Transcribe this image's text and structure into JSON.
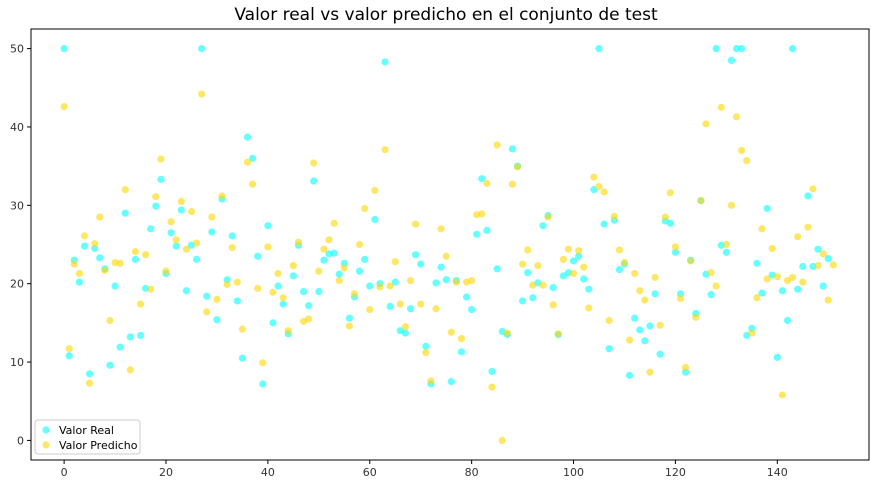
{
  "chart_data": {
    "type": "scatter",
    "title": "Valor real vs valor predicho en el conjunto de test",
    "xlabel": "",
    "ylabel": "",
    "xlim": [
      -6.5,
      158
    ],
    "ylim": [
      -2.5,
      52.5
    ],
    "xticks": [
      0,
      20,
      40,
      60,
      80,
      100,
      120,
      140
    ],
    "yticks": [
      0,
      10,
      20,
      30,
      40,
      50
    ],
    "grid": false,
    "legend_position": "bottom-left",
    "series": [
      {
        "name": "Valor Real",
        "color": "#00ffff",
        "y": [
          50.0,
          10.8,
          23.0,
          20.2,
          24.8,
          8.5,
          24.5,
          23.3,
          21.9,
          9.6,
          19.7,
          11.9,
          29.0,
          13.2,
          23.1,
          13.4,
          19.4,
          27.0,
          29.9,
          33.3,
          21.3,
          26.5,
          24.8,
          29.4,
          19.1,
          24.9,
          23.1,
          50.0,
          18.4,
          26.6,
          15.4,
          30.8,
          20.5,
          26.1,
          17.8,
          10.5,
          38.7,
          36.0,
          23.5,
          7.2,
          27.4,
          15.0,
          19.7,
          17.4,
          13.6,
          21.0,
          24.9,
          19.0,
          17.2,
          33.1,
          19.0,
          23.0,
          23.8,
          23.9,
          21.2,
          22.6,
          15.6,
          18.3,
          21.6,
          23.1,
          19.7,
          28.2,
          20.0,
          48.3,
          17.1,
          20.2,
          14.0,
          13.7,
          16.8,
          23.7,
          22.5,
          12.0,
          7.2,
          20.1,
          22.1,
          20.5,
          7.5,
          20.4,
          11.3,
          18.3,
          16.7,
          26.3,
          33.4,
          26.8,
          8.8,
          21.9,
          13.9,
          13.5,
          37.2,
          35.0,
          17.8,
          21.4,
          18.2,
          20.1,
          27.4,
          28.7,
          19.5,
          13.5,
          21.0,
          21.4,
          22.9,
          23.5,
          20.6,
          19.3,
          32.0,
          50.0,
          27.6,
          11.7,
          28.1,
          21.8,
          22.5,
          8.3,
          15.6,
          14.1,
          12.7,
          14.6,
          18.7,
          11.0,
          28.0,
          27.7,
          24.0,
          18.7,
          8.7,
          23.0,
          16.2,
          30.6,
          21.2,
          18.6,
          50.0,
          24.9,
          24.0,
          48.5,
          50.0,
          50.0,
          13.4,
          14.3,
          22.6,
          18.8,
          29.6,
          21.1,
          10.6,
          19.1,
          15.3,
          50.0,
          19.3,
          22.2,
          31.2,
          22.2,
          24.4,
          19.7,
          23.2
        ]
      },
      {
        "name": "Valor Predicho",
        "color": "#ffd700",
        "y": [
          42.6,
          11.7,
          22.5,
          21.3,
          26.1,
          7.3,
          25.1,
          28.5,
          21.7,
          15.3,
          22.7,
          22.6,
          32.0,
          9.0,
          24.1,
          17.4,
          23.7,
          19.3,
          31.1,
          35.9,
          21.6,
          27.9,
          25.6,
          30.5,
          24.4,
          29.2,
          25.2,
          44.2,
          16.4,
          28.5,
          18.0,
          31.2,
          19.9,
          24.6,
          20.2,
          14.2,
          35.5,
          32.7,
          19.4,
          9.9,
          24.7,
          18.9,
          21.3,
          18.2,
          14.0,
          22.3,
          25.3,
          15.2,
          15.5,
          35.4,
          21.6,
          24.4,
          25.6,
          27.7,
          20.4,
          22.0,
          14.6,
          18.7,
          25.0,
          29.6,
          16.7,
          31.9,
          19.6,
          37.1,
          19.7,
          22.8,
          17.4,
          14.5,
          20.4,
          27.6,
          17.4,
          11.2,
          7.6,
          16.8,
          27.0,
          23.5,
          13.8,
          20.2,
          13.0,
          20.2,
          20.4,
          28.8,
          28.9,
          32.8,
          6.8,
          37.7,
          0.0,
          13.7,
          32.7,
          34.9,
          22.5,
          24.3,
          19.8,
          22.3,
          19.8,
          28.5,
          17.3,
          13.6,
          23.1,
          24.4,
          21.3,
          24.2,
          22.1,
          16.9,
          33.6,
          32.4,
          31.7,
          15.3,
          28.6,
          24.3,
          22.7,
          12.8,
          21.3,
          19.1,
          17.9,
          8.7,
          20.8,
          14.7,
          28.5,
          31.6,
          24.7,
          18.1,
          9.3,
          22.9,
          15.7,
          30.6,
          40.4,
          21.4,
          19.7,
          42.5,
          25.0,
          30.0,
          41.3,
          37.0,
          35.7,
          13.7,
          18.2,
          27.0,
          20.6,
          24.5,
          20.9,
          5.8,
          20.4,
          20.8,
          26.0,
          20.2,
          27.2,
          32.1,
          22.3,
          23.8,
          17.9,
          22.4
        ]
      }
    ]
  }
}
